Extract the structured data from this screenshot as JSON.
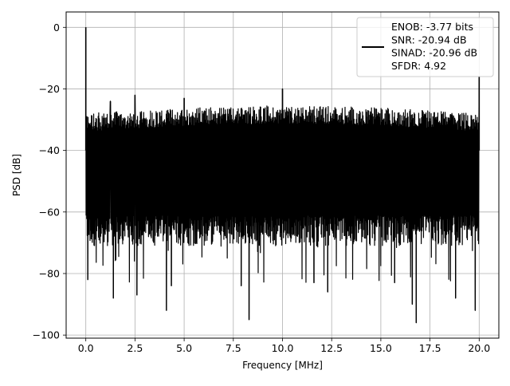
{
  "chart_data": {
    "type": "line",
    "title": "",
    "xlabel": "Frequency [MHz]",
    "ylabel": "PSD [dB]",
    "xlim": [
      -1.0,
      21.0
    ],
    "ylim": [
      -101,
      5
    ],
    "xticks": [
      0.0,
      2.5,
      5.0,
      7.5,
      10.0,
      12.5,
      15.0,
      17.5,
      20.0
    ],
    "xtick_labels": [
      "0.0",
      "2.5",
      "5.0",
      "7.5",
      "10.0",
      "12.5",
      "15.0",
      "17.5",
      "20.0"
    ],
    "yticks": [
      0,
      -20,
      -40,
      -60,
      -80,
      -100
    ],
    "ytick_labels": [
      "0",
      "−20",
      "−40",
      "−60",
      "−80",
      "−100"
    ],
    "grid": true,
    "series": [
      {
        "color": "#000000",
        "band": {
          "x_start": 0.0,
          "x_end": 20.0,
          "typical_top": -30,
          "typical_bottom": -65,
          "deep_minima_floor": -90
        },
        "peaks": [
          {
            "x": 0.0,
            "y": 0
          },
          {
            "x": 1.25,
            "y": -24
          },
          {
            "x": 2.5,
            "y": -22
          },
          {
            "x": 5.0,
            "y": -23
          },
          {
            "x": 10.0,
            "y": -20
          },
          {
            "x": 20.0,
            "y": -16
          }
        ],
        "minima": [
          {
            "x": 0.1,
            "y": -82
          },
          {
            "x": 1.4,
            "y": -88
          },
          {
            "x": 2.6,
            "y": -87
          },
          {
            "x": 4.1,
            "y": -92
          },
          {
            "x": 4.35,
            "y": -84
          },
          {
            "x": 7.9,
            "y": -84
          },
          {
            "x": 8.3,
            "y": -95
          },
          {
            "x": 11.6,
            "y": -83
          },
          {
            "x": 12.3,
            "y": -86
          },
          {
            "x": 15.7,
            "y": -83
          },
          {
            "x": 16.6,
            "y": -90
          },
          {
            "x": 16.8,
            "y": -96
          },
          {
            "x": 18.8,
            "y": -88
          },
          {
            "x": 19.8,
            "y": -92
          }
        ]
      }
    ],
    "legend": {
      "placement": "top-right",
      "lines": [
        "ENOB: -3.77 bits",
        "SNR: -20.94 dB",
        "SINAD: -20.96 dB",
        "SFDR: 4.92"
      ]
    }
  }
}
